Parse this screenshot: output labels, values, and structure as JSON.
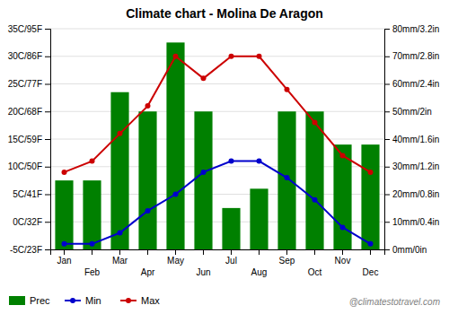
{
  "chart_data": {
    "type": "bar",
    "title": "Climate chart - Molina De Aragon",
    "categories": [
      "Jan",
      "Feb",
      "Mar",
      "Apr",
      "May",
      "Jun",
      "Jul",
      "Aug",
      "Sep",
      "Oct",
      "Nov",
      "Dec"
    ],
    "series": [
      {
        "name": "Prec",
        "type": "bar",
        "axis": "y2",
        "color": "#008000",
        "values": [
          25,
          25,
          57,
          50,
          75,
          50,
          15,
          22,
          50,
          50,
          38,
          38
        ]
      },
      {
        "name": "Min",
        "type": "line",
        "marker": "circle",
        "color": "#0000cc",
        "values": [
          -4,
          -4,
          -2,
          2,
          5,
          9,
          11,
          11,
          8,
          4,
          -1,
          -4
        ]
      },
      {
        "name": "Max",
        "type": "line",
        "marker": "circle",
        "color": "#cc0000",
        "values": [
          9,
          11,
          16,
          21,
          30,
          26,
          30,
          30,
          24,
          18,
          12,
          9
        ]
      }
    ],
    "ylim": [
      -5,
      35
    ],
    "yticks": [
      {
        "value": -5,
        "label": "-5C/23F"
      },
      {
        "value": 0,
        "label": "0C/32F"
      },
      {
        "value": 5,
        "label": "5C/41F"
      },
      {
        "value": 10,
        "label": "10C/50F"
      },
      {
        "value": 15,
        "label": "15C/59F"
      },
      {
        "value": 20,
        "label": "20C/68F"
      },
      {
        "value": 25,
        "label": "25C/77F"
      },
      {
        "value": 30,
        "label": "30C/86F"
      },
      {
        "value": 35,
        "label": "35C/95F"
      }
    ],
    "y2lim": [
      0,
      80
    ],
    "y2ticks": [
      {
        "value": 0,
        "label": "0mm/0in"
      },
      {
        "value": 10,
        "label": "10mm/0.4in"
      },
      {
        "value": 20,
        "label": "20mm/0.8in"
      },
      {
        "value": 30,
        "label": "30mm/1.2in"
      },
      {
        "value": 40,
        "label": "40mm/1.6in"
      },
      {
        "value": 50,
        "label": "50mm/2in"
      },
      {
        "value": 60,
        "label": "60mm/2.4in"
      },
      {
        "value": 70,
        "label": "70mm/2.8in"
      },
      {
        "value": 80,
        "label": "80mm/3.2in"
      }
    ],
    "grid": true,
    "legend": "lower left",
    "annotations": [
      "@climatestotravel.com"
    ]
  }
}
